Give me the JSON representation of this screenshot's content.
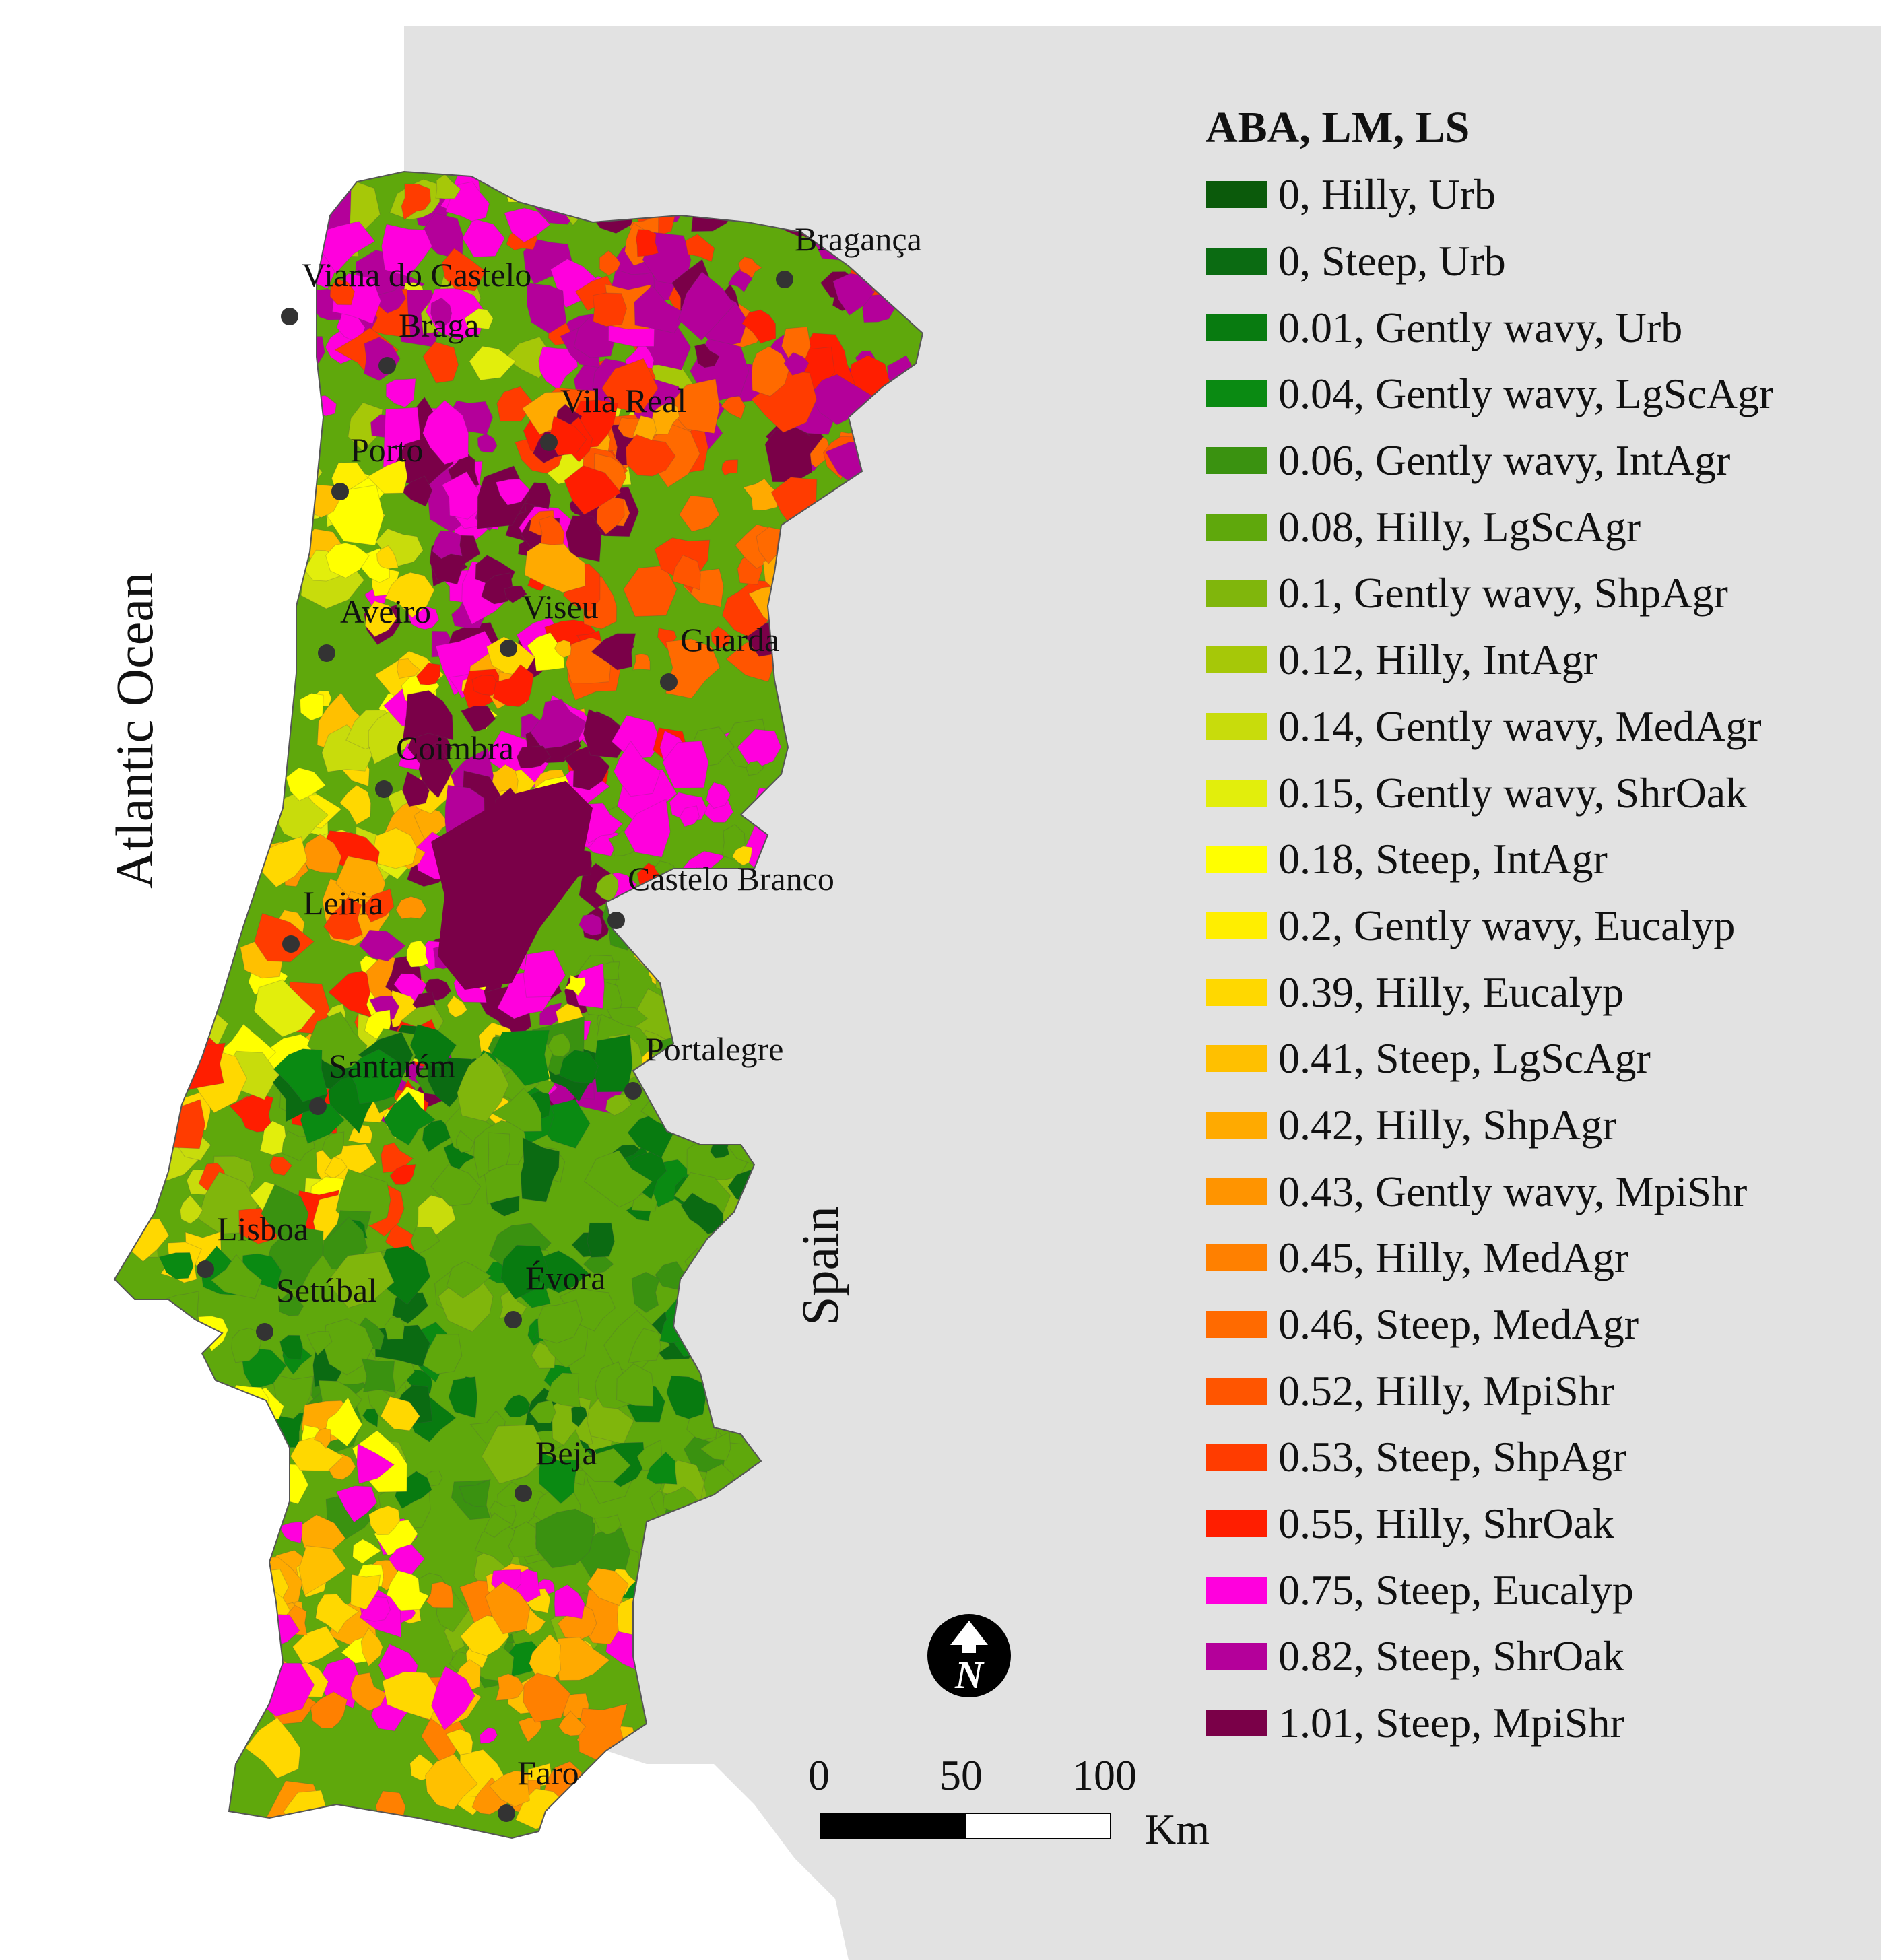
{
  "map": {
    "ocean_label": "Atlantic Ocean",
    "country_label": "Spain",
    "colors": {
      "land_bg": "#e2e2e2",
      "water": "#ffffff",
      "border": "#555555",
      "city_dot": "#333333"
    },
    "cities": [
      {
        "name": "Bragança"
      },
      {
        "name": "Viana do Castelo"
      },
      {
        "name": "Braga"
      },
      {
        "name": "Vila Real"
      },
      {
        "name": "Porto"
      },
      {
        "name": "Aveiro"
      },
      {
        "name": "Viseu"
      },
      {
        "name": "Guarda"
      },
      {
        "name": "Coimbra"
      },
      {
        "name": "Castelo Branco"
      },
      {
        "name": "Leiria"
      },
      {
        "name": "Portalegre"
      },
      {
        "name": "Santarém"
      },
      {
        "name": "Lisboa"
      },
      {
        "name": "Setúbal"
      },
      {
        "name": "Évora"
      },
      {
        "name": "Beja"
      },
      {
        "name": "Faro"
      }
    ]
  },
  "legend": {
    "title": "ABA, LM, LS",
    "items": [
      {
        "label": "0, Hilly, Urb",
        "color": "#0b5a0b"
      },
      {
        "label": "0, Steep, Urb",
        "color": "#0b6b12"
      },
      {
        "label": "0.01, Gently wavy, Urb",
        "color": "#087b10"
      },
      {
        "label": "0.04, Gently wavy, LgScAgr",
        "color": "#0a8a12"
      },
      {
        "label": "0.06, Gently wavy, IntAgr",
        "color": "#3a9210"
      },
      {
        "label": "0.08, Hilly, LgScAgr",
        "color": "#5fa80c"
      },
      {
        "label": "0.1, Gently wavy, ShpAgr",
        "color": "#80b60c"
      },
      {
        "label": "0.12, Hilly, IntAgr",
        "color": "#a6c808"
      },
      {
        "label": "0.14, Gently wavy, MedAgr",
        "color": "#c8dc0c"
      },
      {
        "label": "0.15, Gently wavy, ShrOak",
        "color": "#e2ee0c"
      },
      {
        "label": "0.18, Steep, IntAgr",
        "color": "#ffff00"
      },
      {
        "label": "0.2, Gently wavy, Eucalyp",
        "color": "#ffee00"
      },
      {
        "label": "0.39, Hilly, Eucalyp",
        "color": "#ffd800"
      },
      {
        "label": "0.41, Steep, LgScAgr",
        "color": "#ffc000"
      },
      {
        "label": "0.42, Hilly, ShpAgr",
        "color": "#ffaa00"
      },
      {
        "label": "0.43, Gently wavy, MpiShr",
        "color": "#ff9400"
      },
      {
        "label": "0.45, Hilly, MedAgr",
        "color": "#ff8000"
      },
      {
        "label": "0.46, Steep, MedAgr",
        "color": "#ff6a00"
      },
      {
        "label": "0.52, Hilly, MpiShr",
        "color": "#ff5500"
      },
      {
        "label": "0.53, Steep, ShpAgr",
        "color": "#ff3c00"
      },
      {
        "label": "0.55, Hilly, ShrOak",
        "color": "#ff1e00"
      },
      {
        "label": "0.75, Steep, Eucalyp",
        "color": "#ff00dd"
      },
      {
        "label": "0.82, Steep, ShrOak",
        "color": "#b4009a"
      },
      {
        "label": "1.01, Steep, MpiShr",
        "color": "#7a0048"
      }
    ]
  },
  "scale_bar": {
    "ticks": [
      "0",
      "50",
      "100"
    ],
    "unit": "Km"
  },
  "north_arrow": {
    "letter": "N",
    "icon": "north-arrow-icon"
  }
}
